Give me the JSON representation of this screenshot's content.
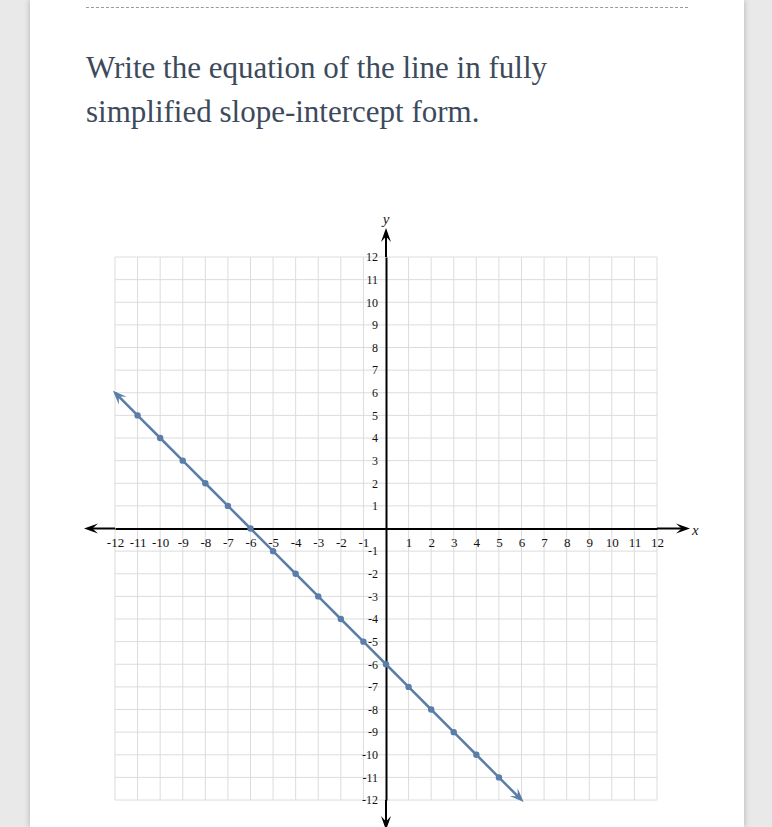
{
  "chart_data": {
    "type": "line",
    "title": "Write the equation of the line in fully simplified slope-intercept form.",
    "x_label": "x",
    "y_label": "y",
    "x": [
      -12,
      -11,
      -10,
      -9,
      -8,
      -7,
      -6,
      -5,
      -4,
      -3,
      -2,
      -1,
      0,
      1,
      2,
      3,
      4,
      5,
      6
    ],
    "values": [
      6,
      5,
      4,
      3,
      2,
      1,
      0,
      -1,
      -2,
      -3,
      -4,
      -5,
      -6,
      -7,
      -8,
      -9,
      -10,
      -11,
      -12
    ],
    "color": "#5a7ea8",
    "marker": "circle",
    "xlim": [
      -12,
      12
    ],
    "ylim": [
      -12,
      12
    ],
    "xticks": [
      -12,
      -11,
      -10,
      -9,
      -8,
      -7,
      -6,
      -5,
      -4,
      -3,
      -2,
      -1,
      1,
      2,
      3,
      4,
      5,
      6,
      7,
      8,
      9,
      10,
      11,
      12
    ],
    "yticks": [
      -12,
      -11,
      -10,
      -9,
      -8,
      -7,
      -6,
      -5,
      -4,
      -3,
      -2,
      -1,
      1,
      2,
      3,
      4,
      5,
      6,
      7,
      8,
      9,
      10,
      11,
      12
    ],
    "grid": true
  }
}
